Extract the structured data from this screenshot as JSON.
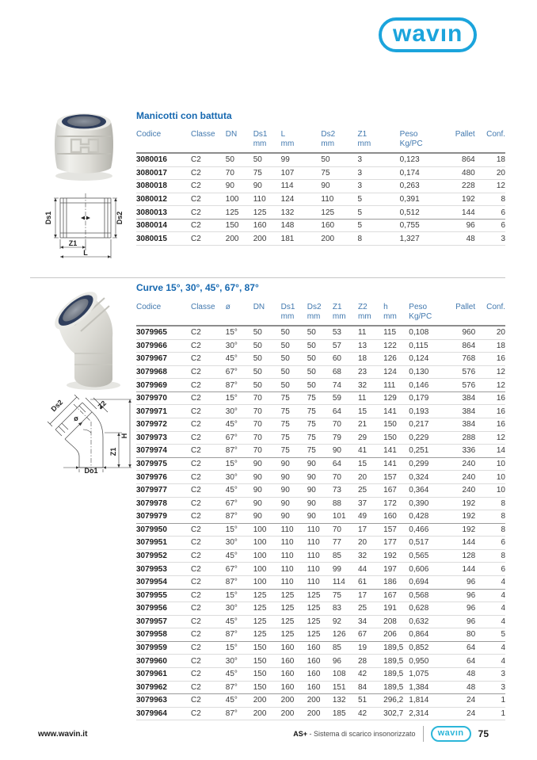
{
  "logo": {
    "text": "wavın"
  },
  "section1": {
    "title": "Manicotti con battuta",
    "table": {
      "columns": [
        {
          "label": "Codice",
          "sub": ""
        },
        {
          "label": "Classe",
          "sub": ""
        },
        {
          "label": "DN",
          "sub": ""
        },
        {
          "label": "Ds1",
          "sub": "mm"
        },
        {
          "label": "L",
          "sub": "mm"
        },
        {
          "label": "Ds2",
          "sub": "mm"
        },
        {
          "label": "Z1",
          "sub": "mm"
        },
        {
          "label": "Peso",
          "sub": "Kg/PC"
        },
        {
          "label": "Pallet",
          "sub": ""
        },
        {
          "label": "Conf.",
          "sub": ""
        }
      ],
      "rows": [
        [
          "3080016",
          "C2",
          "50",
          "50",
          "99",
          "50",
          "3",
          "0,123",
          "864",
          "18"
        ],
        [
          "3080017",
          "C2",
          "70",
          "75",
          "107",
          "75",
          "3",
          "0,174",
          "480",
          "20"
        ],
        [
          "3080018",
          "C2",
          "90",
          "90",
          "114",
          "90",
          "3",
          "0,263",
          "228",
          "12"
        ],
        [
          "3080012",
          "C2",
          "100",
          "110",
          "124",
          "110",
          "5",
          "0,391",
          "192",
          "8"
        ],
        [
          "3080013",
          "C2",
          "125",
          "125",
          "132",
          "125",
          "5",
          "0,512",
          "144",
          "6"
        ],
        [
          "3080014",
          "C2",
          "150",
          "160",
          "148",
          "160",
          "5",
          "0,755",
          "96",
          "6"
        ],
        [
          "3080015",
          "C2",
          "200",
          "200",
          "181",
          "200",
          "8",
          "1,327",
          "48",
          "3"
        ]
      ],
      "group_breaks": [
        4
      ]
    },
    "diagram_labels": {
      "ds1": "Ds1",
      "ds2": "Ds2",
      "z1": "Z1",
      "l": "L"
    }
  },
  "section2": {
    "title": "Curve 15°, 30°, 45°, 67°, 87°",
    "table": {
      "columns": [
        {
          "label": "Codice",
          "sub": ""
        },
        {
          "label": "Classe",
          "sub": ""
        },
        {
          "label": "ø",
          "sub": ""
        },
        {
          "label": "DN",
          "sub": ""
        },
        {
          "label": "Ds1",
          "sub": "mm"
        },
        {
          "label": "Ds2",
          "sub": "mm"
        },
        {
          "label": "Z1",
          "sub": "mm"
        },
        {
          "label": "Z2",
          "sub": "mm"
        },
        {
          "label": "h",
          "sub": "mm"
        },
        {
          "label": "Peso",
          "sub": "Kg/PC"
        },
        {
          "label": "Pallet",
          "sub": ""
        },
        {
          "label": "Conf.",
          "sub": ""
        }
      ],
      "rows": [
        [
          "3079965",
          "C2",
          "15°",
          "50",
          "50",
          "50",
          "53",
          "11",
          "115",
          "0,108",
          "960",
          "20"
        ],
        [
          "3079966",
          "C2",
          "30°",
          "50",
          "50",
          "50",
          "57",
          "13",
          "122",
          "0,115",
          "864",
          "18"
        ],
        [
          "3079967",
          "C2",
          "45°",
          "50",
          "50",
          "50",
          "60",
          "18",
          "126",
          "0,124",
          "768",
          "16"
        ],
        [
          "3079968",
          "C2",
          "67°",
          "50",
          "50",
          "50",
          "68",
          "23",
          "124",
          "0,130",
          "576",
          "12"
        ],
        [
          "3079969",
          "C2",
          "87°",
          "50",
          "50",
          "50",
          "74",
          "32",
          "111",
          "0,146",
          "576",
          "12"
        ],
        [
          "3079970",
          "C2",
          "15°",
          "70",
          "75",
          "75",
          "59",
          "11",
          "129",
          "0,179",
          "384",
          "16"
        ],
        [
          "3079971",
          "C2",
          "30°",
          "70",
          "75",
          "75",
          "64",
          "15",
          "141",
          "0,193",
          "384",
          "16"
        ],
        [
          "3079972",
          "C2",
          "45°",
          "70",
          "75",
          "75",
          "70",
          "21",
          "150",
          "0,217",
          "384",
          "16"
        ],
        [
          "3079973",
          "C2",
          "67°",
          "70",
          "75",
          "75",
          "79",
          "29",
          "150",
          "0,229",
          "288",
          "12"
        ],
        [
          "3079974",
          "C2",
          "87°",
          "70",
          "75",
          "75",
          "90",
          "41",
          "141",
          "0,251",
          "336",
          "14"
        ],
        [
          "3079975",
          "C2",
          "15°",
          "90",
          "90",
          "90",
          "64",
          "15",
          "141",
          "0,299",
          "240",
          "10"
        ],
        [
          "3079976",
          "C2",
          "30°",
          "90",
          "90",
          "90",
          "70",
          "20",
          "157",
          "0,324",
          "240",
          "10"
        ],
        [
          "3079977",
          "C2",
          "45°",
          "90",
          "90",
          "90",
          "73",
          "25",
          "167",
          "0,364",
          "240",
          "10"
        ],
        [
          "3079978",
          "C2",
          "67°",
          "90",
          "90",
          "90",
          "88",
          "37",
          "172",
          "0,390",
          "192",
          "8"
        ],
        [
          "3079979",
          "C2",
          "87°",
          "90",
          "90",
          "90",
          "101",
          "49",
          "160",
          "0,428",
          "192",
          "8"
        ],
        [
          "3079950",
          "C2",
          "15°",
          "100",
          "110",
          "110",
          "70",
          "17",
          "157",
          "0,466",
          "192",
          "8"
        ],
        [
          "3079951",
          "C2",
          "30°",
          "100",
          "110",
          "110",
          "77",
          "20",
          "177",
          "0,517",
          "144",
          "6"
        ],
        [
          "3079952",
          "C2",
          "45°",
          "100",
          "110",
          "110",
          "85",
          "32",
          "192",
          "0,565",
          "128",
          "8"
        ],
        [
          "3079953",
          "C2",
          "67°",
          "100",
          "110",
          "110",
          "99",
          "44",
          "197",
          "0,606",
          "144",
          "6"
        ],
        [
          "3079954",
          "C2",
          "87°",
          "100",
          "110",
          "110",
          "114",
          "61",
          "186",
          "0,694",
          "96",
          "4"
        ],
        [
          "3079955",
          "C2",
          "15°",
          "125",
          "125",
          "125",
          "75",
          "17",
          "167",
          "0,568",
          "96",
          "4"
        ],
        [
          "3079956",
          "C2",
          "30°",
          "125",
          "125",
          "125",
          "83",
          "25",
          "191",
          "0,628",
          "96",
          "4"
        ],
        [
          "3079957",
          "C2",
          "45°",
          "125",
          "125",
          "125",
          "92",
          "34",
          "208",
          "0,632",
          "96",
          "4"
        ],
        [
          "3079958",
          "C2",
          "87°",
          "125",
          "125",
          "125",
          "126",
          "67",
          "206",
          "0,864",
          "80",
          "5"
        ],
        [
          "3079959",
          "C2",
          "15°",
          "150",
          "160",
          "160",
          "85",
          "19",
          "189,5",
          "0,852",
          "64",
          "4"
        ],
        [
          "3079960",
          "C2",
          "30°",
          "150",
          "160",
          "160",
          "96",
          "28",
          "189,5",
          "0,950",
          "64",
          "4"
        ],
        [
          "3079961",
          "C2",
          "45°",
          "150",
          "160",
          "160",
          "108",
          "42",
          "189,5",
          "1,075",
          "48",
          "3"
        ],
        [
          "3079962",
          "C2",
          "87°",
          "150",
          "160",
          "160",
          "151",
          "84",
          "189,5",
          "1,384",
          "48",
          "3"
        ],
        [
          "3079963",
          "C2",
          "45°",
          "200",
          "200",
          "200",
          "132",
          "51",
          "296,2",
          "1,814",
          "24",
          "1"
        ],
        [
          "3079964",
          "C2",
          "87°",
          "200",
          "200",
          "200",
          "185",
          "42",
          "302,7",
          "2,314",
          "24",
          "1"
        ]
      ],
      "group_breaks": [
        4,
        9,
        14,
        19,
        23,
        27
      ]
    },
    "diagram_labels": {
      "ds2": "Ds2",
      "z2": "Z2",
      "angle": "ø",
      "h": "H",
      "z1": "Z1",
      "do1": "Do1"
    }
  },
  "footer": {
    "site": "www.wavin.it",
    "product_bold": "AS+",
    "product_rest": " - Sistema di scarico insonorizzato",
    "logo_text": "wavın",
    "page": "75"
  }
}
